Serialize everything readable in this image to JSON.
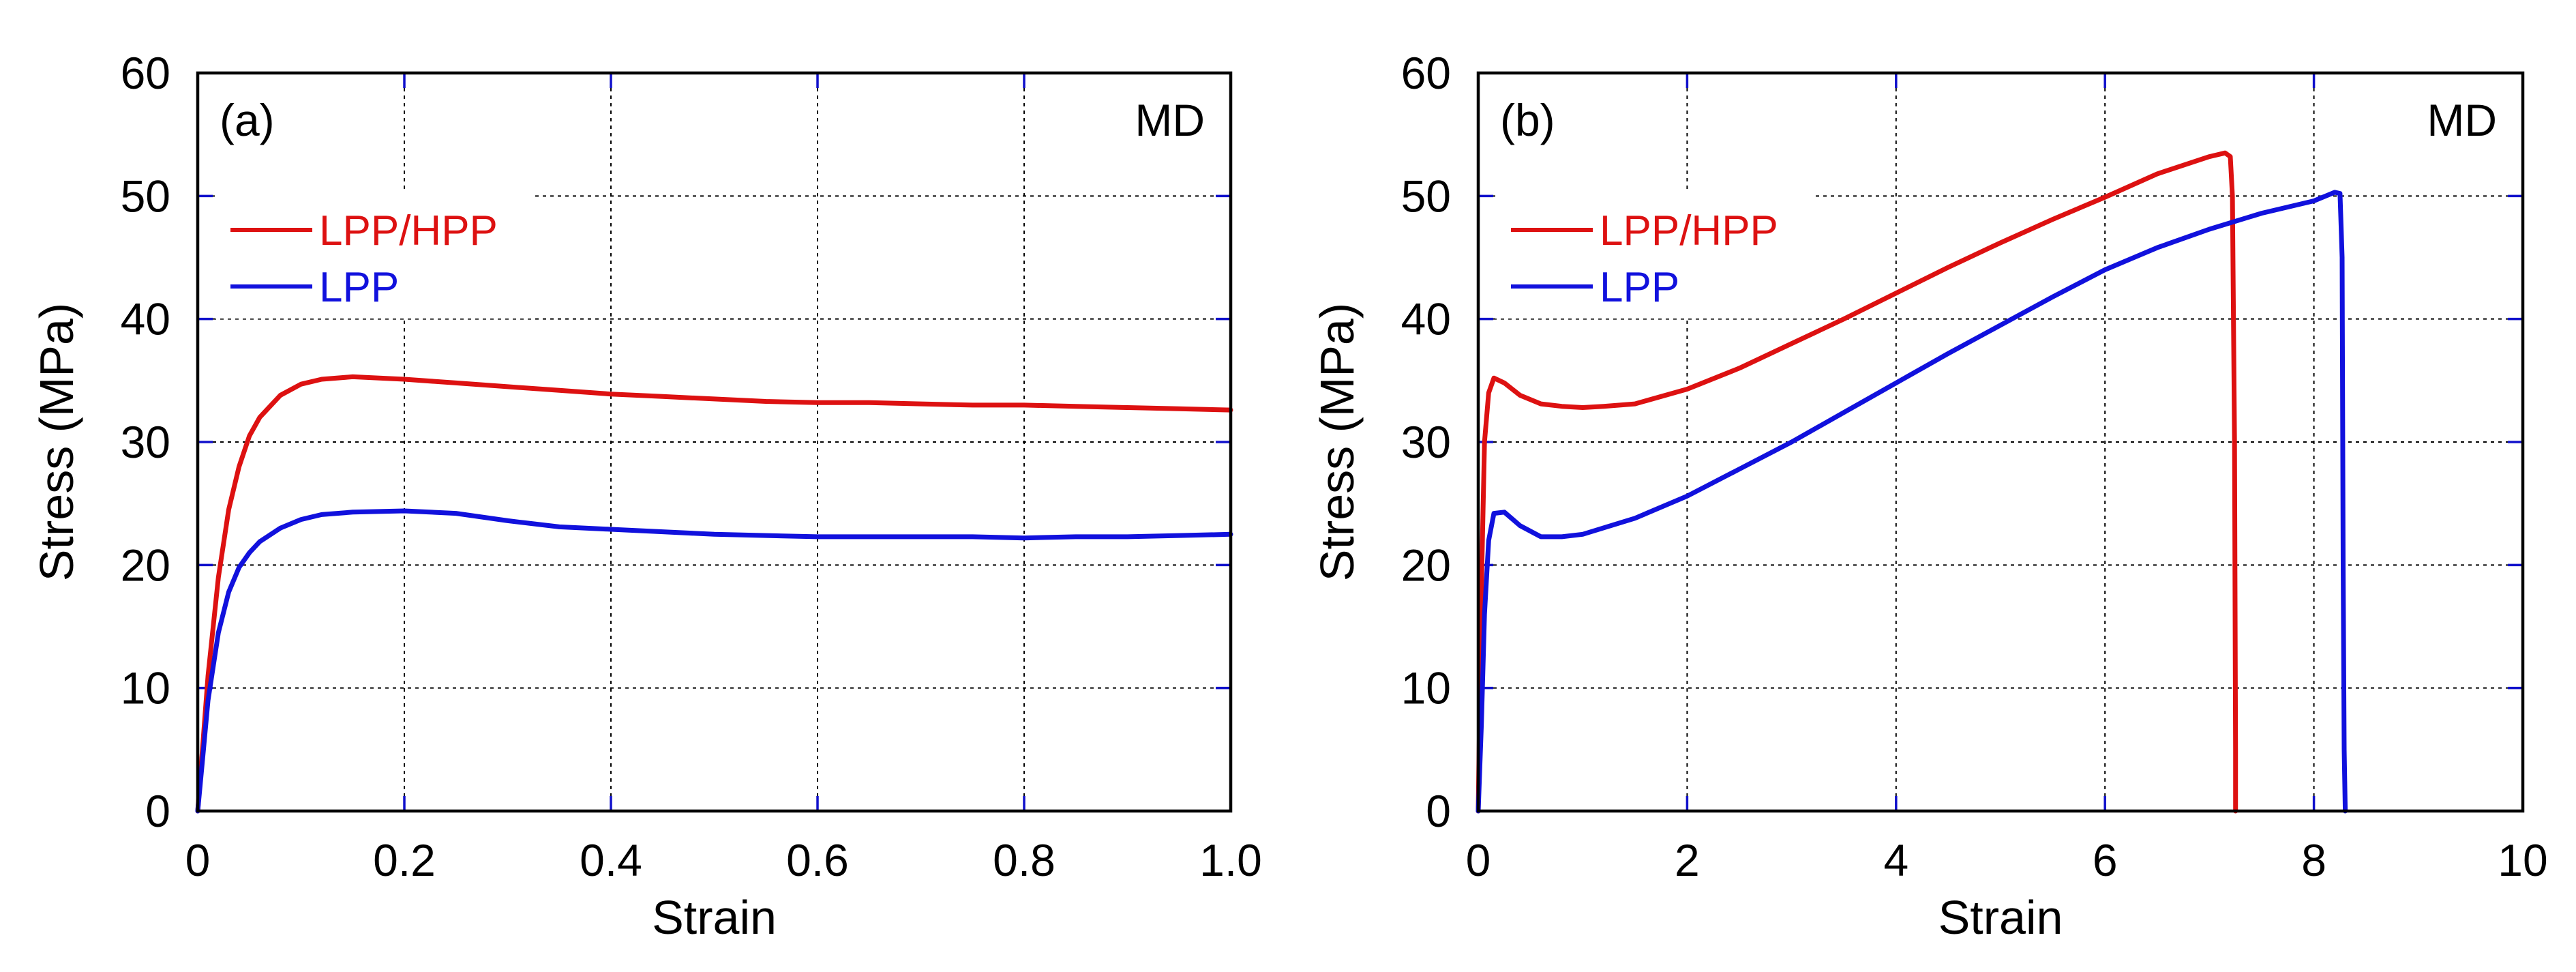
{
  "colors": {
    "lpp_hpp": "#dd1111",
    "lpp": "#1111dd",
    "frame": "#000000",
    "grid": "#000000",
    "tick": "#1111cc"
  },
  "chart_data": [
    {
      "type": "line",
      "panel_label": "(a)",
      "direction_label": "MD",
      "xlabel": "Strain",
      "ylabel": "Stress (MPa)",
      "xlim": [
        0,
        1.0
      ],
      "ylim": [
        0,
        60
      ],
      "xticks": [
        0,
        0.2,
        0.4,
        0.6,
        0.8,
        1.0
      ],
      "xtick_labels": [
        "0",
        "0.2",
        "0.4",
        "0.6",
        "0.8",
        "1.0"
      ],
      "yticks": [
        0,
        10,
        20,
        30,
        40,
        50,
        60
      ],
      "ytick_labels": [
        "0",
        "10",
        "20",
        "30",
        "40",
        "50",
        "60"
      ],
      "grid": true,
      "legend": "upper-left",
      "series": [
        {
          "name": "LPP/HPP",
          "color_key": "lpp_hpp",
          "x": [
            0,
            0.005,
            0.01,
            0.02,
            0.03,
            0.04,
            0.05,
            0.06,
            0.08,
            0.1,
            0.12,
            0.15,
            0.2,
            0.25,
            0.3,
            0.35,
            0.4,
            0.45,
            0.5,
            0.55,
            0.6,
            0.65,
            0.7,
            0.75,
            0.8,
            0.85,
            0.9,
            0.95,
            1.0
          ],
          "y": [
            0,
            5.5,
            11,
            19,
            24.5,
            28,
            30.5,
            32,
            33.8,
            34.7,
            35.1,
            35.3,
            35.1,
            34.8,
            34.5,
            34.2,
            33.9,
            33.7,
            33.5,
            33.3,
            33.2,
            33.2,
            33.1,
            33.0,
            33.0,
            32.9,
            32.8,
            32.7,
            32.6
          ]
        },
        {
          "name": "LPP",
          "color_key": "lpp",
          "x": [
            0,
            0.005,
            0.01,
            0.02,
            0.03,
            0.04,
            0.05,
            0.06,
            0.08,
            0.1,
            0.12,
            0.15,
            0.2,
            0.25,
            0.3,
            0.35,
            0.4,
            0.45,
            0.5,
            0.55,
            0.6,
            0.65,
            0.7,
            0.75,
            0.8,
            0.85,
            0.9,
            0.95,
            1.0
          ],
          "y": [
            0,
            4.5,
            9,
            14.5,
            17.8,
            19.8,
            21,
            21.9,
            23,
            23.7,
            24.1,
            24.3,
            24.4,
            24.2,
            23.6,
            23.1,
            22.9,
            22.7,
            22.5,
            22.4,
            22.3,
            22.3,
            22.3,
            22.3,
            22.2,
            22.3,
            22.3,
            22.4,
            22.5
          ]
        }
      ]
    },
    {
      "type": "line",
      "panel_label": "(b)",
      "direction_label": "MD",
      "xlabel": "Strain",
      "ylabel": "Stress (MPa)",
      "xlim": [
        0,
        10
      ],
      "ylim": [
        0,
        60
      ],
      "xticks": [
        0,
        2,
        4,
        6,
        8,
        10
      ],
      "xtick_labels": [
        "0",
        "2",
        "4",
        "6",
        "8",
        "10"
      ],
      "yticks": [
        0,
        10,
        20,
        30,
        40,
        50,
        60
      ],
      "ytick_labels": [
        "0",
        "10",
        "20",
        "30",
        "40",
        "50",
        "60"
      ],
      "grid": true,
      "legend": "upper-left",
      "series": [
        {
          "name": "LPP/HPP",
          "color_key": "lpp_hpp",
          "x": [
            0,
            0.03,
            0.06,
            0.1,
            0.15,
            0.25,
            0.4,
            0.6,
            0.8,
            1.0,
            1.2,
            1.5,
            2.0,
            2.5,
            3.0,
            3.5,
            4.0,
            4.5,
            5.0,
            5.5,
            6.0,
            6.5,
            7.0,
            7.15,
            7.2,
            7.22,
            7.24,
            7.25,
            7.25
          ],
          "y": [
            0,
            18,
            30,
            34,
            35.2,
            34.8,
            33.8,
            33.1,
            32.9,
            32.8,
            32.9,
            33.1,
            34.3,
            36,
            38,
            40,
            42.1,
            44.2,
            46.2,
            48.1,
            49.9,
            51.8,
            53.2,
            53.5,
            53.2,
            50,
            30,
            5,
            0
          ]
        },
        {
          "name": "LPP",
          "color_key": "lpp",
          "x": [
            0,
            0.03,
            0.06,
            0.1,
            0.15,
            0.25,
            0.4,
            0.6,
            0.8,
            1.0,
            1.5,
            2.0,
            2.5,
            3.0,
            3.5,
            4.0,
            4.5,
            5.0,
            5.5,
            6.0,
            6.5,
            7.0,
            7.5,
            8.0,
            8.2,
            8.25,
            8.27,
            8.28,
            8.29,
            8.3
          ],
          "y": [
            0,
            7,
            16,
            22,
            24.2,
            24.3,
            23.2,
            22.3,
            22.3,
            22.5,
            23.8,
            25.6,
            27.8,
            30,
            32.4,
            34.8,
            37.2,
            39.5,
            41.8,
            44,
            45.8,
            47.3,
            48.6,
            49.6,
            50.3,
            50.2,
            45,
            20,
            5,
            0
          ]
        }
      ]
    }
  ]
}
